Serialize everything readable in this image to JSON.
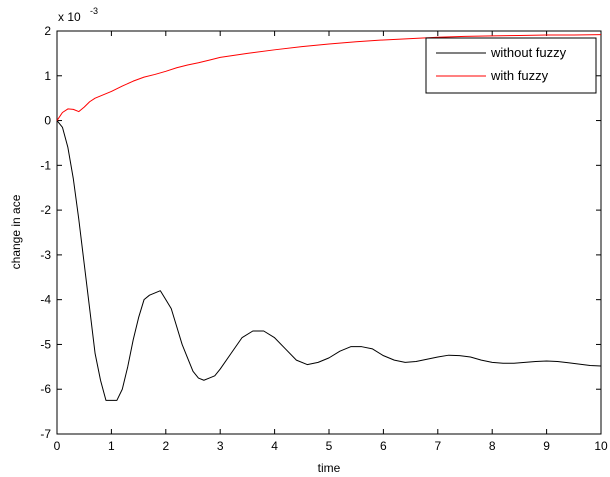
{
  "chart_data": {
    "type": "line",
    "title": "",
    "xlabel": "time",
    "ylabel": "change in ace",
    "y_exponent_label": "x 10",
    "y_exponent_power": "-3",
    "xlim": [
      0,
      10
    ],
    "ylim": [
      -7,
      2
    ],
    "x_ticks": [
      "0",
      "1",
      "2",
      "3",
      "4",
      "5",
      "6",
      "7",
      "8",
      "9",
      "10"
    ],
    "y_ticks": [
      "-7",
      "-6",
      "-5",
      "-4",
      "-3",
      "-2",
      "-1",
      "0",
      "1",
      "2"
    ],
    "grid": false,
    "legend_position": "top-right",
    "series": [
      {
        "name": "without fuzzy",
        "color": "#000000",
        "points": [
          [
            0,
            0
          ],
          [
            0.1,
            -0.15
          ],
          [
            0.2,
            -0.6
          ],
          [
            0.3,
            -1.3
          ],
          [
            0.4,
            -2.2
          ],
          [
            0.5,
            -3.2
          ],
          [
            0.6,
            -4.2
          ],
          [
            0.7,
            -5.2
          ],
          [
            0.8,
            -5.8
          ],
          [
            0.9,
            -6.25
          ],
          [
            1.0,
            -6.25
          ],
          [
            1.1,
            -6.25
          ],
          [
            1.2,
            -6.0
          ],
          [
            1.3,
            -5.5
          ],
          [
            1.4,
            -4.9
          ],
          [
            1.5,
            -4.4
          ],
          [
            1.6,
            -4.0
          ],
          [
            1.7,
            -3.9
          ],
          [
            1.8,
            -3.85
          ],
          [
            1.9,
            -3.8
          ],
          [
            2.0,
            -4.0
          ],
          [
            2.1,
            -4.2
          ],
          [
            2.2,
            -4.6
          ],
          [
            2.3,
            -5.0
          ],
          [
            2.4,
            -5.3
          ],
          [
            2.5,
            -5.6
          ],
          [
            2.6,
            -5.75
          ],
          [
            2.7,
            -5.8
          ],
          [
            2.8,
            -5.75
          ],
          [
            2.9,
            -5.7
          ],
          [
            3.0,
            -5.55
          ],
          [
            3.2,
            -5.2
          ],
          [
            3.4,
            -4.85
          ],
          [
            3.6,
            -4.7
          ],
          [
            3.8,
            -4.7
          ],
          [
            4.0,
            -4.85
          ],
          [
            4.2,
            -5.1
          ],
          [
            4.4,
            -5.35
          ],
          [
            4.6,
            -5.45
          ],
          [
            4.8,
            -5.4
          ],
          [
            5.0,
            -5.3
          ],
          [
            5.2,
            -5.15
          ],
          [
            5.4,
            -5.05
          ],
          [
            5.6,
            -5.05
          ],
          [
            5.8,
            -5.1
          ],
          [
            6.0,
            -5.25
          ],
          [
            6.2,
            -5.35
          ],
          [
            6.4,
            -5.4
          ],
          [
            6.6,
            -5.38
          ],
          [
            6.8,
            -5.33
          ],
          [
            7.0,
            -5.28
          ],
          [
            7.2,
            -5.24
          ],
          [
            7.4,
            -5.25
          ],
          [
            7.6,
            -5.28
          ],
          [
            7.8,
            -5.35
          ],
          [
            8.0,
            -5.4
          ],
          [
            8.2,
            -5.42
          ],
          [
            8.4,
            -5.42
          ],
          [
            8.6,
            -5.4
          ],
          [
            8.8,
            -5.38
          ],
          [
            9.0,
            -5.37
          ],
          [
            9.2,
            -5.38
          ],
          [
            9.4,
            -5.41
          ],
          [
            9.6,
            -5.44
          ],
          [
            9.8,
            -5.47
          ],
          [
            10.0,
            -5.48
          ]
        ]
      },
      {
        "name": "with fuzzy",
        "color": "#ff0000",
        "points": [
          [
            0,
            0
          ],
          [
            0.1,
            0.18
          ],
          [
            0.2,
            0.26
          ],
          [
            0.3,
            0.25
          ],
          [
            0.4,
            0.2
          ],
          [
            0.5,
            0.3
          ],
          [
            0.6,
            0.42
          ],
          [
            0.7,
            0.5
          ],
          [
            0.8,
            0.55
          ],
          [
            1.0,
            0.65
          ],
          [
            1.2,
            0.77
          ],
          [
            1.4,
            0.88
          ],
          [
            1.6,
            0.97
          ],
          [
            1.8,
            1.03
          ],
          [
            2.0,
            1.1
          ],
          [
            2.2,
            1.18
          ],
          [
            2.4,
            1.24
          ],
          [
            2.6,
            1.29
          ],
          [
            2.8,
            1.35
          ],
          [
            3.0,
            1.41
          ],
          [
            3.5,
            1.5
          ],
          [
            4.0,
            1.58
          ],
          [
            4.5,
            1.65
          ],
          [
            5.0,
            1.71
          ],
          [
            5.5,
            1.76
          ],
          [
            6.0,
            1.8
          ],
          [
            6.5,
            1.83
          ],
          [
            7.0,
            1.86
          ],
          [
            7.5,
            1.88
          ],
          [
            8.0,
            1.89
          ],
          [
            8.5,
            1.9
          ],
          [
            9.0,
            1.91
          ],
          [
            9.5,
            1.91
          ],
          [
            10.0,
            1.92
          ]
        ]
      }
    ]
  }
}
